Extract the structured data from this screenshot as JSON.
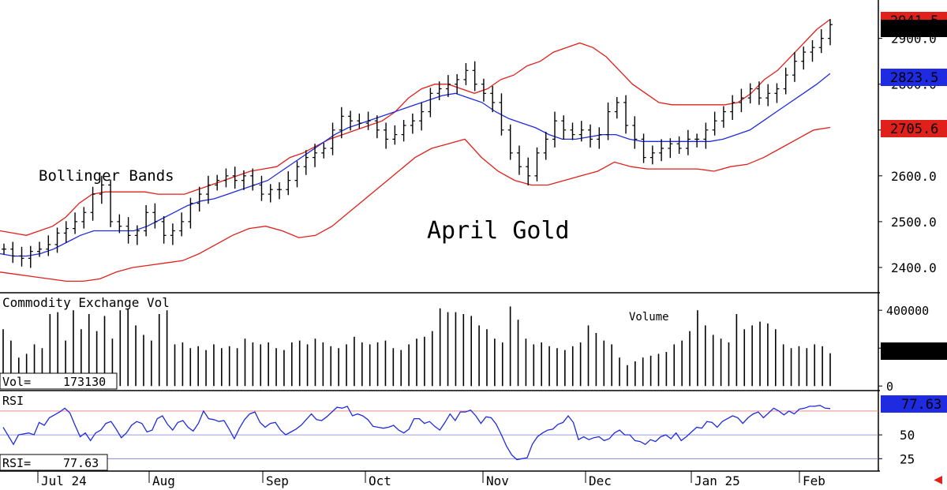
{
  "chart_data": [
    {
      "type": "ohlc",
      "title": "April Gold",
      "indicator_label": "Bollinger Bands",
      "ylim": [
        2350,
        2970
      ],
      "yticks": [
        "2900.0",
        "2800.0",
        "2700.0",
        "2600.0",
        "2500.0",
        "2400.0"
      ],
      "ytick_values": [
        2900,
        2800,
        2700,
        2600,
        2500,
        2400
      ],
      "months": [
        "Jul 24",
        "Aug",
        "Sep",
        "Oct",
        "Nov",
        "Dec",
        "Jan 25",
        "Feb"
      ],
      "badges": {
        "last": {
          "text": "2930.1",
          "value": 2930.1,
          "color": "#000000"
        },
        "upper": {
          "text": "2941.5",
          "value": 2941.5,
          "color": "#e0201a"
        },
        "middle": {
          "text": "2823.5",
          "value": 2823.5,
          "color": "#1f2be0"
        },
        "lower": {
          "text": "2705.6",
          "value": 2705.6,
          "color": "#e0201a"
        }
      },
      "colors": {
        "bars": "#000000",
        "upper": "#e0201a",
        "middle": "#1f2be0",
        "lower": "#e0201a"
      },
      "closes": [
        2440,
        2425,
        2420,
        2435,
        2440,
        2450,
        2475,
        2485,
        2500,
        2520,
        2560,
        2580,
        2500,
        2490,
        2470,
        2480,
        2520,
        2500,
        2470,
        2480,
        2500,
        2540,
        2560,
        2580,
        2590,
        2600,
        2590,
        2600,
        2580,
        2560,
        2570,
        2570,
        2590,
        2620,
        2640,
        2650,
        2660,
        2700,
        2730,
        2720,
        2715,
        2720,
        2700,
        2680,
        2690,
        2710,
        2720,
        2740,
        2780,
        2790,
        2800,
        2810,
        2830,
        2800,
        2780,
        2760,
        2700,
        2650,
        2620,
        2600,
        2650,
        2680,
        2720,
        2700,
        2690,
        2700,
        2680,
        2690,
        2740,
        2760,
        2710,
        2680,
        2640,
        2650,
        2660,
        2670,
        2660,
        2680,
        2680,
        2700,
        2720,
        2740,
        2760,
        2770,
        2790,
        2770,
        2780,
        2790,
        2820,
        2850,
        2870,
        2880,
        2900,
        2930
      ],
      "upper": [
        2480,
        2475,
        2470,
        2480,
        2490,
        2510,
        2540,
        2560,
        2565,
        2565,
        2565,
        2565,
        2560,
        2560,
        2560,
        2570,
        2580,
        2590,
        2600,
        2610,
        2615,
        2620,
        2640,
        2650,
        2665,
        2680,
        2690,
        2700,
        2710,
        2720,
        2740,
        2770,
        2790,
        2800,
        2800,
        2790,
        2780,
        2790,
        2810,
        2820,
        2840,
        2850,
        2870,
        2880,
        2890,
        2880,
        2860,
        2830,
        2800,
        2780,
        2760,
        2755,
        2755,
        2755,
        2755,
        2755,
        2760,
        2780,
        2810,
        2830,
        2860,
        2890,
        2920,
        2941.5
      ],
      "middle": [
        2430,
        2425,
        2425,
        2430,
        2440,
        2455,
        2470,
        2480,
        2480,
        2480,
        2480,
        2490,
        2505,
        2520,
        2535,
        2545,
        2550,
        2560,
        2570,
        2580,
        2590,
        2610,
        2630,
        2650,
        2670,
        2690,
        2705,
        2715,
        2725,
        2735,
        2745,
        2755,
        2765,
        2775,
        2780,
        2770,
        2760,
        2740,
        2725,
        2715,
        2705,
        2690,
        2680,
        2680,
        2685,
        2690,
        2690,
        2680,
        2675,
        2675,
        2675,
        2675,
        2675,
        2675,
        2680,
        2690,
        2700,
        2720,
        2740,
        2760,
        2780,
        2800,
        2823.5
      ],
      "lower": [
        2390,
        2385,
        2380,
        2375,
        2370,
        2370,
        2375,
        2390,
        2400,
        2405,
        2410,
        2415,
        2430,
        2450,
        2470,
        2485,
        2490,
        2480,
        2465,
        2470,
        2490,
        2520,
        2550,
        2580,
        2610,
        2640,
        2660,
        2670,
        2680,
        2640,
        2610,
        2590,
        2580,
        2580,
        2590,
        2600,
        2610,
        2630,
        2620,
        2615,
        2615,
        2615,
        2615,
        2610,
        2620,
        2625,
        2640,
        2660,
        2680,
        2700,
        2705.6
      ]
    },
    {
      "type": "bar",
      "title": "Commodity Exchange Vol",
      "annotation": "Volume",
      "readout_label": "Vol=",
      "readout_value": "173130",
      "badge": {
        "text": "173130",
        "value": 173130,
        "color": "#000000"
      },
      "ylim": [
        -20000,
        480000
      ],
      "yticks": [
        "400000",
        "200000",
        "0"
      ],
      "ytick_values": [
        400000,
        200000,
        0
      ],
      "values": [
        300000,
        240000,
        150000,
        170000,
        220000,
        200000,
        380000,
        390000,
        240000,
        400000,
        300000,
        380000,
        290000,
        370000,
        250000,
        400000,
        410000,
        320000,
        270000,
        240000,
        380000,
        400000,
        220000,
        230000,
        200000,
        210000,
        190000,
        220000,
        200000,
        210000,
        200000,
        250000,
        230000,
        220000,
        230000,
        200000,
        190000,
        230000,
        240000,
        220000,
        250000,
        230000,
        210000,
        200000,
        220000,
        260000,
        230000,
        220000,
        230000,
        240000,
        200000,
        190000,
        220000,
        250000,
        260000,
        290000,
        410000,
        390000,
        390000,
        380000,
        370000,
        320000,
        300000,
        250000,
        230000,
        420000,
        350000,
        250000,
        220000,
        230000,
        210000,
        200000,
        190000,
        210000,
        230000,
        320000,
        280000,
        240000,
        220000,
        150000,
        110000,
        130000,
        150000,
        160000,
        170000,
        180000,
        220000,
        240000,
        290000,
        400000,
        320000,
        270000,
        250000,
        230000,
        380000,
        300000,
        320000,
        340000,
        330000,
        300000,
        220000,
        200000,
        210000,
        200000,
        220000,
        210000,
        173130
      ]
    },
    {
      "type": "line",
      "title": "RSI",
      "readout_label": "RSI=",
      "readout_value": "77.63",
      "badge": {
        "text": "77.63",
        "value": 77.63,
        "color": "#1f2be0"
      },
      "ylim": [
        12,
        94
      ],
      "yticks": [
        "50",
        "25"
      ],
      "ytick_values": [
        50,
        25
      ],
      "reference_lines": [
        75,
        50,
        25
      ],
      "color": "#1f2be0",
      "values": [
        58,
        49,
        40,
        50,
        51,
        52,
        50,
        63,
        60,
        68,
        71,
        74,
        78,
        73,
        60,
        48,
        52,
        44,
        52,
        55,
        62,
        64,
        56,
        47,
        52,
        60,
        64,
        62,
        53,
        55,
        67,
        70,
        61,
        55,
        63,
        65,
        58,
        54,
        62,
        75,
        67,
        66,
        64,
        65,
        56,
        46,
        57,
        66,
        72,
        74,
        63,
        58,
        62,
        63,
        55,
        50,
        53,
        56,
        60,
        66,
        72,
        66,
        65,
        69,
        74,
        79,
        78,
        80,
        70,
        72,
        70,
        66,
        59,
        58,
        57,
        58,
        60,
        55,
        52,
        56,
        67,
        67,
        62,
        64,
        59,
        55,
        63,
        72,
        65,
        74,
        74,
        76,
        70,
        62,
        69,
        68,
        61,
        50,
        38,
        29,
        24,
        25,
        26,
        40,
        48,
        52,
        55,
        56,
        61,
        63,
        70,
        63,
        45,
        48,
        45,
        47,
        48,
        44,
        46,
        52,
        55,
        50,
        50,
        44,
        43,
        40,
        45,
        43,
        48,
        50,
        46,
        52,
        44,
        48,
        53,
        58,
        57,
        64,
        63,
        58,
        64,
        67,
        70,
        68,
        62,
        68,
        72,
        74,
        68,
        73,
        78,
        75,
        71,
        75,
        72,
        77,
        78,
        80,
        80,
        81,
        78,
        77.63
      ]
    }
  ]
}
